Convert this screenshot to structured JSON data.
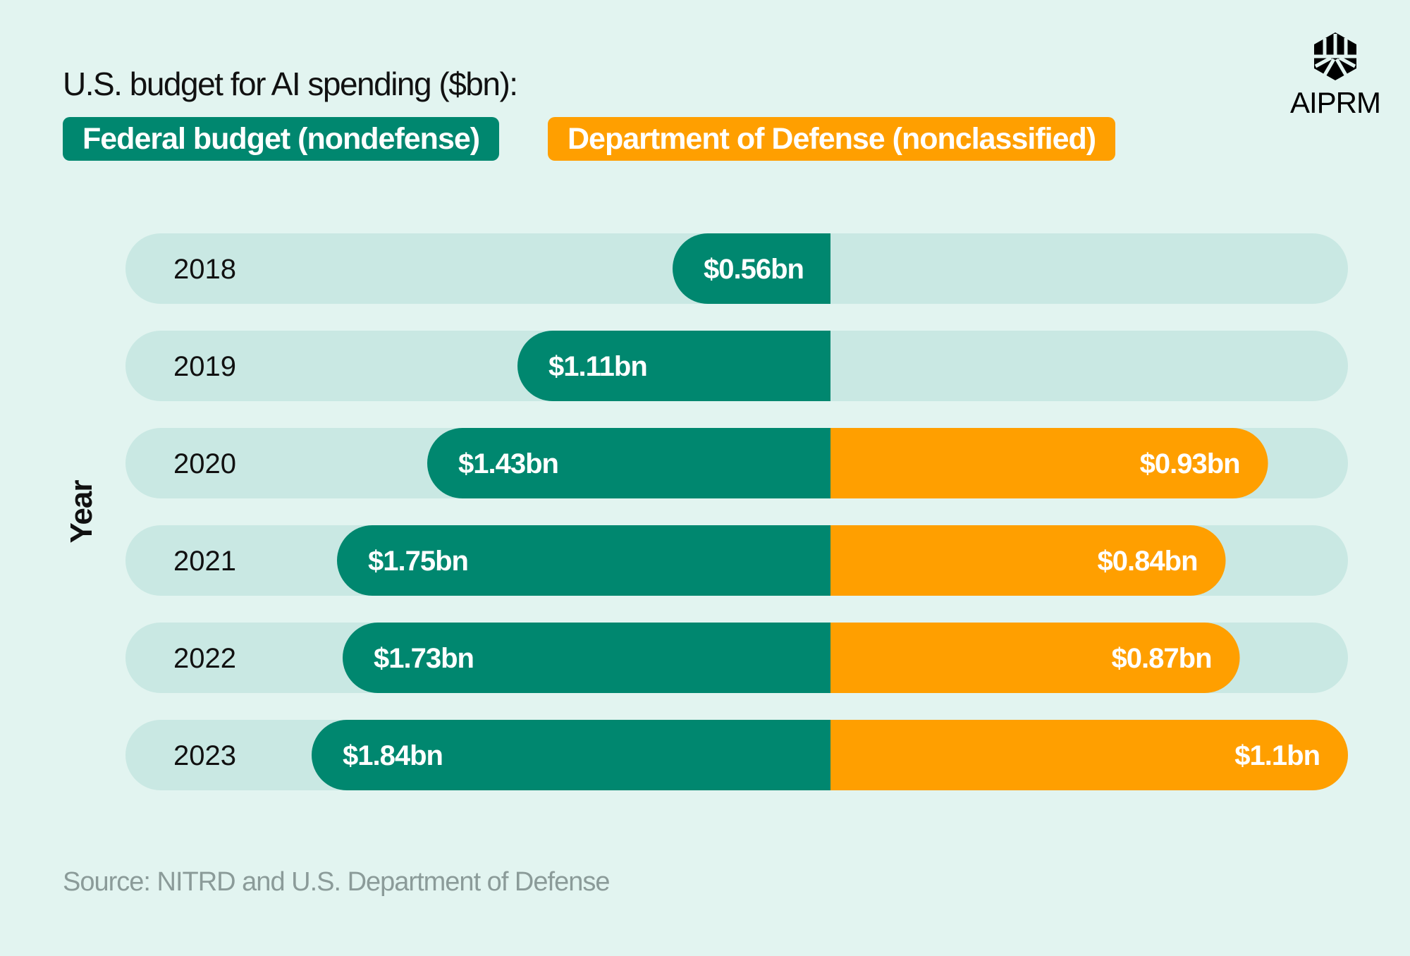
{
  "colors": {
    "federal": "#00876f",
    "defense": "#ff9f00",
    "track": "#c9e8e3",
    "background": "#e2f4f0"
  },
  "logo": {
    "icon": "aiprm-logo-icon",
    "text": "AIPRM"
  },
  "source": "Source: NITRD and U.S. Department of Defense",
  "chart_data": {
    "type": "bar",
    "orientation": "horizontal-diverging",
    "title": "U.S. budget for AI spending ($bn):",
    "ylabel": "Year",
    "xlabel": "",
    "categories": [
      "2018",
      "2019",
      "2020",
      "2021",
      "2022",
      "2023"
    ],
    "series": [
      {
        "name": "Federal budget (nondefense)",
        "values": [
          0.56,
          1.11,
          1.43,
          1.75,
          1.73,
          1.84
        ],
        "labels": [
          "$0.56bn",
          "$1.11bn",
          "$1.43bn",
          "$1.75bn",
          "$1.73bn",
          "$1.84bn"
        ]
      },
      {
        "name": "Department of Defense (nonclassified)",
        "values": [
          null,
          null,
          0.93,
          0.84,
          0.87,
          1.1
        ],
        "labels": [
          null,
          null,
          "$0.93bn",
          "$0.84bn",
          "$0.87bn",
          "$1.1bn"
        ]
      }
    ],
    "legend": "top-left",
    "grid": false
  }
}
